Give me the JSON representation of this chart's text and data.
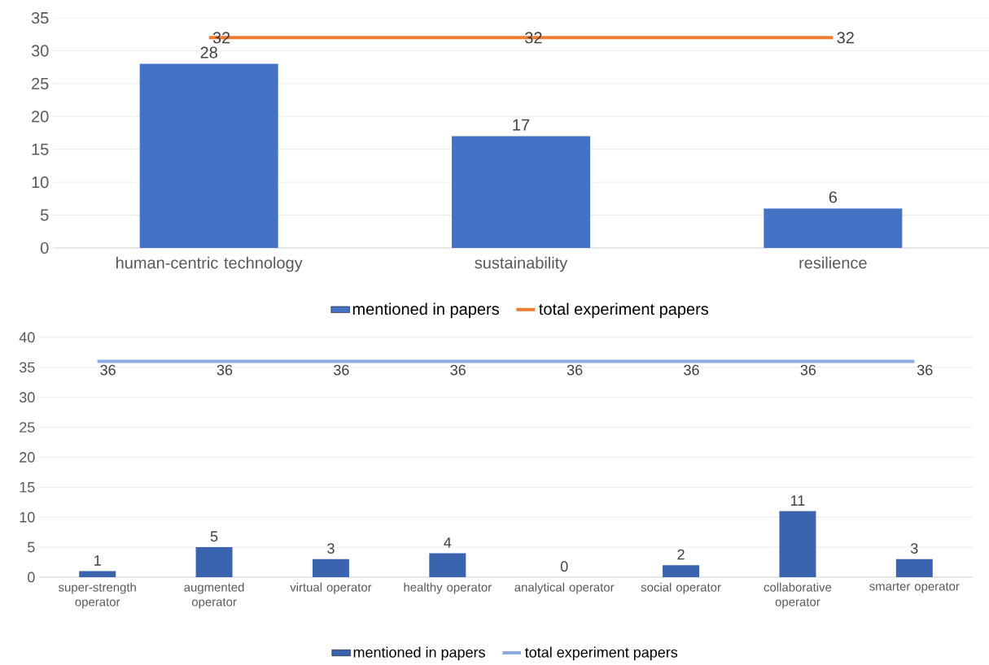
{
  "chart_data": [
    {
      "type": "bar",
      "categories": [
        "human-centric technology",
        "sustainability",
        "resilience"
      ],
      "series": [
        {
          "name": "mentioned in papers",
          "type": "bar",
          "color": "#4472c4",
          "values": [
            28,
            17,
            6
          ]
        },
        {
          "name": "total experiment papers",
          "type": "line",
          "color": "#ed7d31",
          "values": [
            32,
            32,
            32
          ]
        }
      ],
      "ylim": [
        0,
        35
      ],
      "yticks": [
        0,
        5,
        10,
        15,
        20,
        25,
        30,
        35
      ],
      "grid": "y",
      "legend": "bottom",
      "data_labels": true
    },
    {
      "type": "bar",
      "categories": [
        "super-strength operator",
        "augmented operator",
        "virtual operator",
        "healthy operator",
        "analytical operator",
        "social operator",
        "collaborative operator",
        "smarter operator"
      ],
      "series": [
        {
          "name": "mentioned in papers",
          "type": "bar",
          "color": "#3a64ad",
          "values": [
            1,
            5,
            3,
            4,
            0,
            2,
            11,
            3
          ]
        },
        {
          "name": "total experiment papers",
          "type": "line",
          "color": "#8faadc",
          "values": [
            36,
            36,
            36,
            36,
            36,
            36,
            36,
            36
          ]
        }
      ],
      "ylim": [
        0,
        40
      ],
      "yticks": [
        0,
        5,
        10,
        15,
        20,
        25,
        30,
        35,
        40
      ],
      "grid": "y",
      "legend": "bottom",
      "data_labels": true
    }
  ]
}
